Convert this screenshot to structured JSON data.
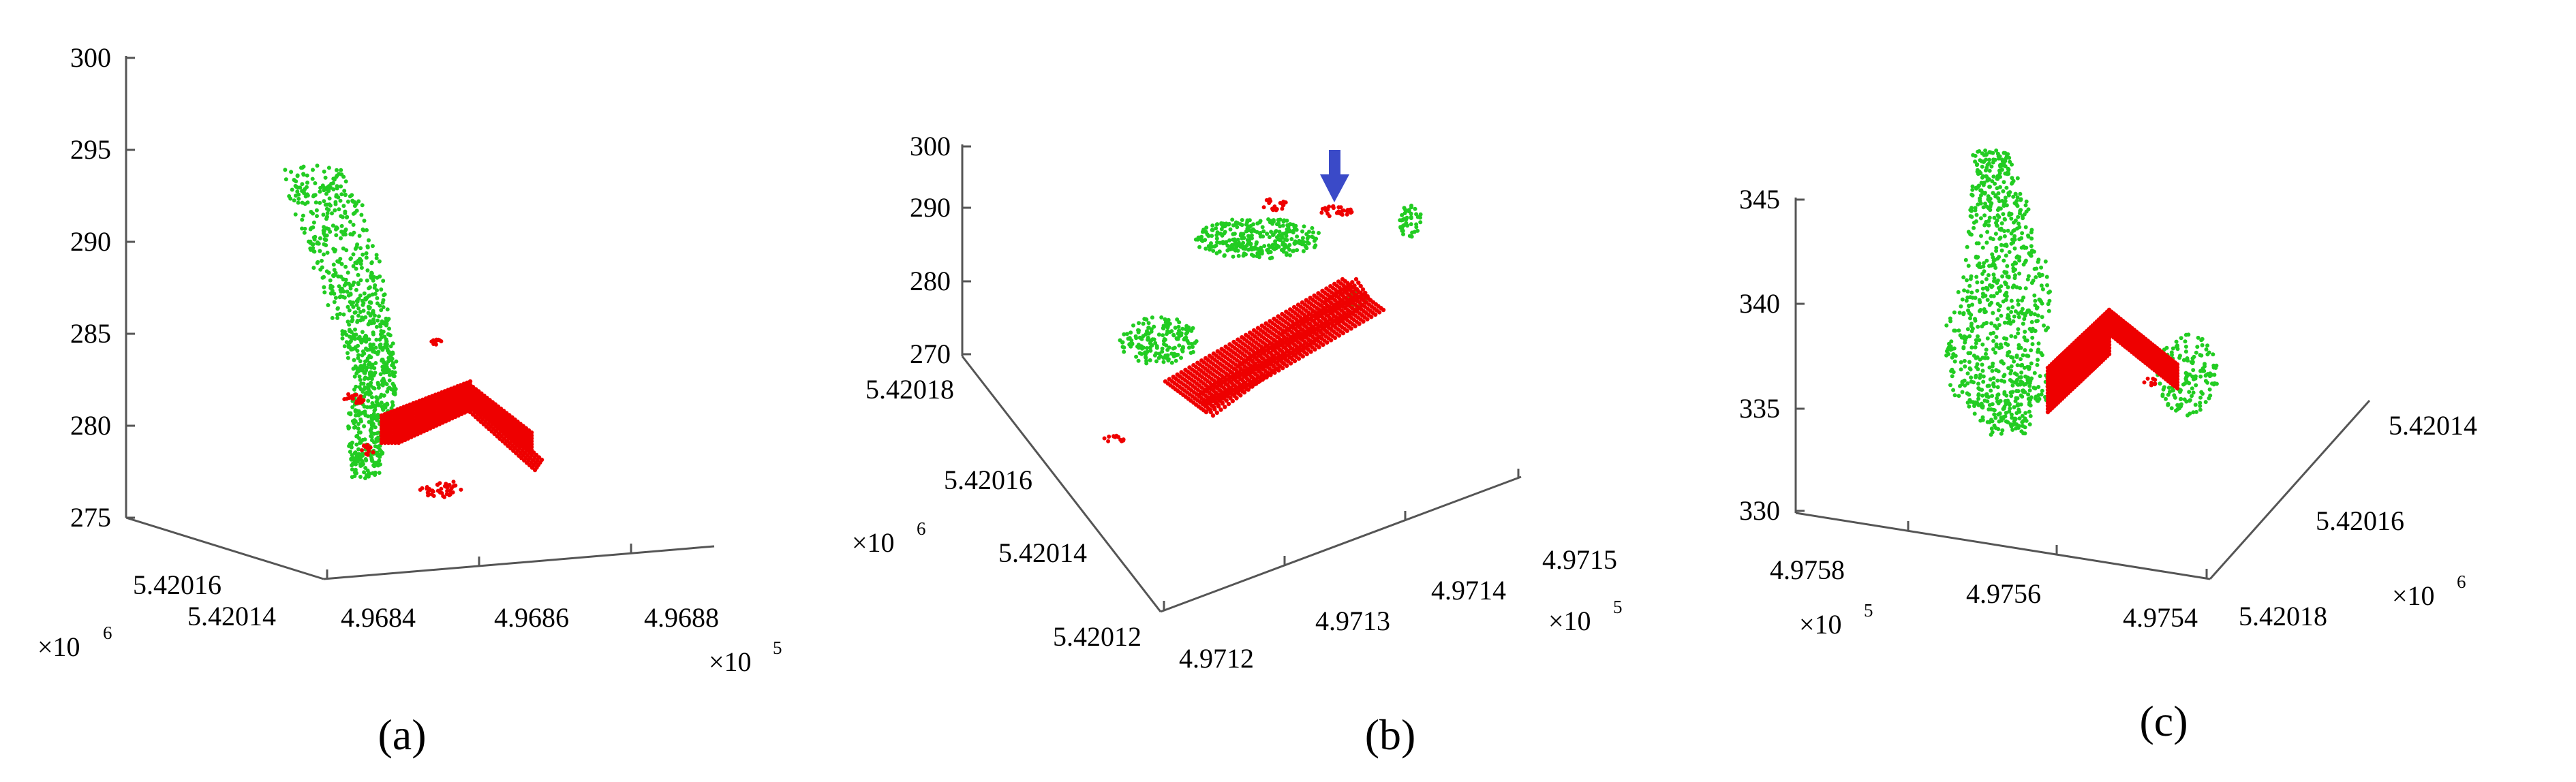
{
  "colors": {
    "ground": "#22cc22",
    "building": "#ee0000",
    "arrow": "#3a4ac8",
    "axis": "#555555"
  },
  "figure": {
    "panels": [
      {
        "caption": "(a)",
        "z_ticks": [
          "300",
          "295",
          "290",
          "285",
          "280",
          "275"
        ],
        "x_ticks": [
          "4.9684",
          "4.9686",
          "4.9688"
        ],
        "x_mult": "×10",
        "x_exp": "5",
        "y_ticks": [
          "5.42016",
          "5.42014"
        ],
        "y_mult": "×10",
        "y_exp": "6"
      },
      {
        "caption": "(b)",
        "z_ticks": [
          "300",
          "290",
          "280",
          "270"
        ],
        "x_ticks": [
          "4.9712",
          "4.9713",
          "4.9714",
          "4.9715"
        ],
        "x_mult": "×10",
        "x_exp": "5",
        "y_ticks": [
          "5.42018",
          "5.42016",
          "5.42014",
          "5.42012"
        ],
        "y_mult": "×10",
        "y_exp": "6"
      },
      {
        "caption": "(c)",
        "z_ticks": [
          "345",
          "340",
          "335",
          "330"
        ],
        "x_ticks": [
          "4.9758",
          "4.9756",
          "4.9754"
        ],
        "x_mult": "×10",
        "x_exp": "5",
        "y_ticks": [
          "5.42014",
          "5.42016",
          "5.42018"
        ],
        "y_mult": "×10",
        "y_exp": "6"
      }
    ]
  },
  "chart_data": [
    {
      "type": "scatter",
      "title": "(a)",
      "zlim": [
        275,
        300
      ],
      "series": [
        {
          "color": "#22cc22",
          "description": "non-building points forming a tall column between z 278 and 294"
        },
        {
          "color": "#ee0000",
          "description": "building roof points forming a chevron-shaped structure near z 277-282"
        }
      ]
    },
    {
      "type": "scatter",
      "title": "(b)",
      "zlim": [
        270,
        300
      ],
      "series": [
        {
          "color": "#22cc22",
          "description": "non-building points scattered near z 280-290"
        },
        {
          "color": "#ee0000",
          "description": "dense building roof points forming a tilted slab near z 272-283, plus a small cluster near z 290 marked by an arrow"
        }
      ]
    },
    {
      "type": "scatter",
      "title": "(c)",
      "zlim": [
        330,
        345
      ],
      "series": [
        {
          "color": "#22cc22",
          "description": "non-building points forming a tilted column between z 334 and 346"
        },
        {
          "color": "#ee0000",
          "description": "building roof points forming a wedge near z 335-339"
        }
      ]
    }
  ]
}
